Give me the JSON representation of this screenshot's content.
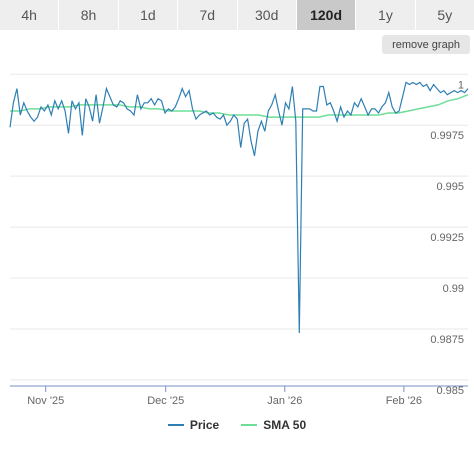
{
  "tabs": [
    {
      "label": "4h",
      "active": false
    },
    {
      "label": "8h",
      "active": false
    },
    {
      "label": "1d",
      "active": false
    },
    {
      "label": "7d",
      "active": false
    },
    {
      "label": "30d",
      "active": false
    },
    {
      "label": "120d",
      "active": true
    },
    {
      "label": "1y",
      "active": false
    },
    {
      "label": "5y",
      "active": false
    }
  ],
  "remove_graph_label": "remove graph",
  "colors": {
    "price": "#2f7fb4",
    "sma": "#6fdd97",
    "grid": "#e8e8e8",
    "axis": "#7a8fc6"
  },
  "chart_data": {
    "type": "line",
    "title": "",
    "xlabel": "",
    "ylabel": "",
    "x_ticks": [
      "Nov '25",
      "Dec '25",
      "Jan '26",
      "Feb '26"
    ],
    "x_tick_positions": [
      0.078,
      0.34,
      0.6,
      0.86
    ],
    "y_ticks": [
      "1",
      "0.9975",
      "0.995",
      "0.9925",
      "0.99",
      "0.9875",
      "0.985"
    ],
    "y_tick_values": [
      1,
      0.9975,
      0.995,
      0.9925,
      0.99,
      0.9875,
      0.985
    ],
    "ylim": [
      0.9847,
      1.0008
    ],
    "legend_position": "bottom",
    "series": [
      {
        "name": "Price",
        "values": [
          0.9974,
          0.9986,
          0.9993,
          0.998,
          0.9986,
          0.9982,
          0.9979,
          0.9977,
          0.9979,
          0.9984,
          0.9982,
          0.9985,
          0.998,
          0.9987,
          0.9983,
          0.9987,
          0.9982,
          0.9971,
          0.9987,
          0.9983,
          0.9986,
          0.997,
          0.9988,
          0.9984,
          0.9977,
          0.999,
          0.9976,
          0.9984,
          0.9993,
          0.9989,
          0.9985,
          0.9984,
          0.9987,
          0.9986,
          0.9983,
          0.9982,
          0.998,
          0.999,
          0.9983,
          0.9986,
          0.9986,
          0.9988,
          0.9985,
          0.9988,
          0.9987,
          0.9981,
          0.9983,
          0.9982,
          0.9984,
          0.9988,
          0.9993,
          0.9989,
          0.9992,
          0.9983,
          0.9978,
          0.998,
          0.9981,
          0.9982,
          0.998,
          0.9981,
          0.9979,
          0.9978,
          0.998,
          0.9975,
          0.9977,
          0.998,
          0.9978,
          0.9964,
          0.9976,
          0.9978,
          0.9967,
          0.996,
          0.9972,
          0.9977,
          0.9972,
          0.9982,
          0.9985,
          0.999,
          0.9982,
          0.9975,
          0.9986,
          0.9983,
          0.9994,
          0.9977,
          0.9873,
          0.9983,
          0.9983,
          0.9983,
          0.9982,
          0.9982,
          0.9994,
          0.9994,
          0.9985,
          0.9986,
          0.9982,
          0.9977,
          0.9984,
          0.9979,
          0.9982,
          0.998,
          0.9986,
          0.9984,
          0.9988,
          0.9984,
          0.998,
          0.9983,
          0.9983,
          0.9981,
          0.9984,
          0.9986,
          0.9991,
          0.9984,
          0.9981,
          0.9982,
          0.9989,
          0.9996,
          0.9995,
          0.9996,
          0.9995,
          0.9996,
          0.9994,
          0.9995,
          0.9992,
          0.9995,
          0.9993,
          0.9991,
          0.9992,
          0.999,
          0.9991,
          0.9992,
          0.9991,
          0.9992,
          0.9991,
          0.9993
        ]
      },
      {
        "name": "SMA 50",
        "values": [
          0.9982,
          0.9982,
          0.9983,
          0.9983,
          0.9984,
          0.9984,
          0.9984,
          0.9985,
          0.9985,
          0.9985,
          0.9985,
          0.9985,
          0.9984,
          0.9984,
          0.9983,
          0.9983,
          0.9982,
          0.9982,
          0.9982,
          0.9982,
          0.9981,
          0.9981,
          0.998,
          0.998,
          0.998,
          0.998,
          0.9979,
          0.9979,
          0.9979,
          0.9979,
          0.9979,
          0.9979,
          0.998,
          0.998,
          0.998,
          0.998,
          0.998,
          0.998,
          0.9981,
          0.9981,
          0.9982,
          0.9983,
          0.9984,
          0.9985,
          0.9987,
          0.9988,
          0.999
        ]
      }
    ]
  },
  "legend": [
    {
      "label": "Price",
      "color": "#2f7fb4"
    },
    {
      "label": "SMA 50",
      "color": "#6fdd97"
    }
  ]
}
